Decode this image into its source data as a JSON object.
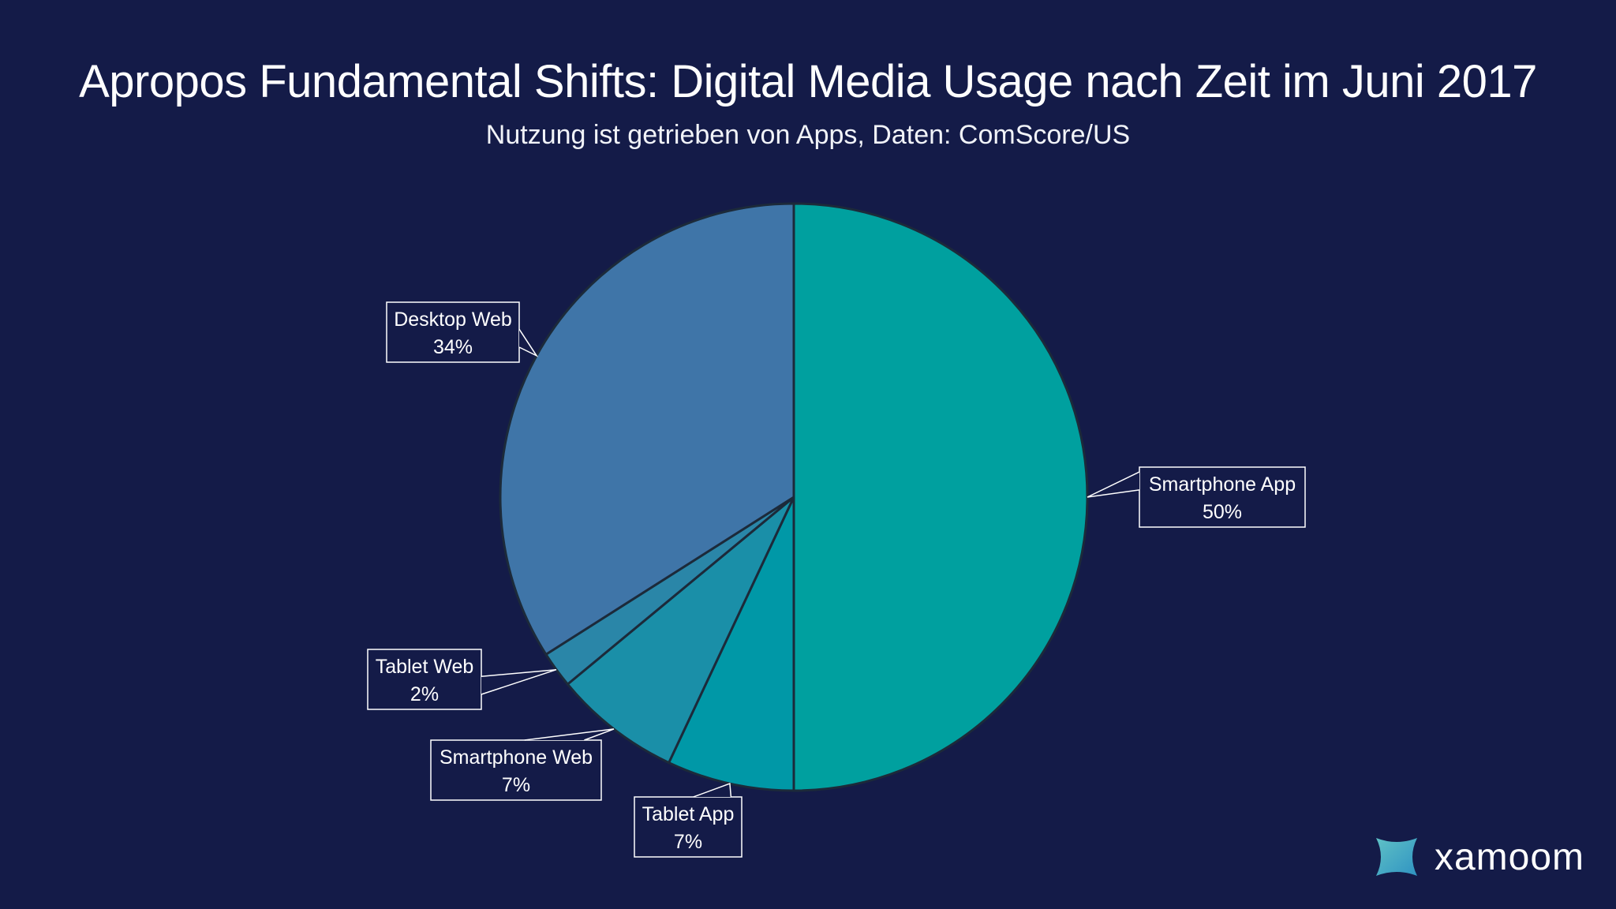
{
  "chart_data": {
    "type": "pie",
    "title": "Apropos Fundamental Shifts: Digital Media Usage nach Zeit im Juni 2017",
    "subtitle": "Nutzung ist getrieben von Apps, Daten: ComScore/US",
    "slices": [
      {
        "label": "Smartphone App",
        "value": 50,
        "value_label": "50%",
        "color": "#00a09f"
      },
      {
        "label": "Tablet App",
        "value": 7,
        "value_label": "7%",
        "color": "#0098a7"
      },
      {
        "label": "Smartphone Web",
        "value": 7,
        "value_label": "7%",
        "color": "#1a8fa8"
      },
      {
        "label": "Tablet Web",
        "value": 2,
        "value_label": "2%",
        "color": "#2a86a8"
      },
      {
        "label": "Desktop Web",
        "value": 34,
        "value_label": "34%",
        "color": "#3f75a8"
      }
    ],
    "start": "12 o'clock",
    "direction": "clockwise",
    "legend": "none"
  },
  "colors": {
    "background": "#141b48",
    "slice_border": "#1c2a3a",
    "callout": "#ffffff"
  },
  "brand": {
    "name": "xamoom",
    "icon": "xamoom-logo-icon"
  }
}
